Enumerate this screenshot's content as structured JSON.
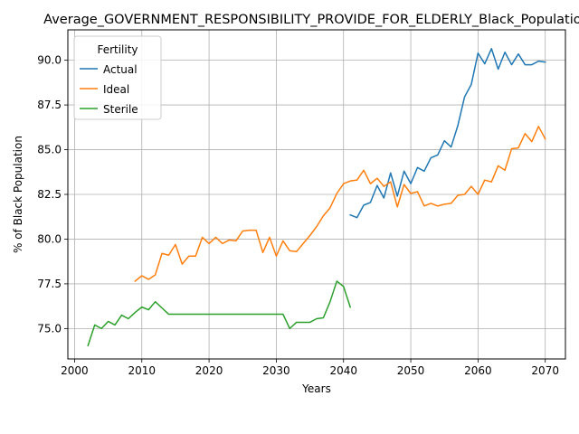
{
  "chart_data": {
    "type": "line",
    "title": "Average_GOVERNMENT_RESPONSIBILITY_PROVIDE_FOR_ELDERLY_Black_Population",
    "xlabel": "Years",
    "ylabel": "% of Black Population",
    "xlim": [
      1999,
      2073
    ],
    "ylim": [
      73.3,
      91.7
    ],
    "xticks": [
      2000,
      2010,
      2020,
      2030,
      2040,
      2050,
      2060,
      2070
    ],
    "yticks": [
      75.0,
      77.5,
      80.0,
      82.5,
      85.0,
      87.5,
      90.0
    ],
    "ytick_labels": [
      "75.0",
      "77.5",
      "80.0",
      "82.5",
      "85.0",
      "87.5",
      "90.0"
    ],
    "grid": true,
    "legend": {
      "title": "Fertility",
      "placement": "top-left"
    },
    "series": [
      {
        "name": "Actual",
        "color": "#1f77b4",
        "x": [
          2041,
          2042,
          2043,
          2044,
          2045,
          2046,
          2047,
          2048,
          2049,
          2050,
          2051,
          2052,
          2053,
          2054,
          2055,
          2056,
          2057,
          2058,
          2059,
          2060,
          2061,
          2062,
          2063,
          2064,
          2065,
          2066,
          2067,
          2068,
          2069,
          2070
        ],
        "y": [
          81.35,
          81.2,
          81.9,
          82.05,
          83.0,
          82.3,
          83.7,
          82.4,
          83.8,
          83.1,
          84.0,
          83.8,
          84.55,
          84.7,
          85.5,
          85.15,
          86.35,
          87.95,
          88.65,
          90.4,
          89.8,
          90.65,
          89.5,
          90.45,
          89.75,
          90.35,
          89.75,
          89.75,
          89.95,
          89.9
        ]
      },
      {
        "name": "Ideal",
        "color": "#ff7f0e",
        "x": [
          2009,
          2010,
          2011,
          2012,
          2013,
          2014,
          2015,
          2016,
          2017,
          2018,
          2019,
          2020,
          2021,
          2022,
          2023,
          2024,
          2025,
          2026,
          2027,
          2028,
          2029,
          2030,
          2031,
          2032,
          2033,
          2034,
          2035,
          2036,
          2037,
          2038,
          2039,
          2040,
          2041,
          2042,
          2043,
          2044,
          2045,
          2046,
          2047,
          2048,
          2049,
          2050,
          2051,
          2052,
          2053,
          2054,
          2055,
          2056,
          2057,
          2058,
          2059,
          2060,
          2061,
          2062,
          2063,
          2064,
          2065,
          2066,
          2067,
          2068,
          2069,
          2070
        ],
        "y": [
          77.65,
          77.95,
          77.75,
          78.0,
          79.2,
          79.1,
          79.7,
          78.6,
          79.05,
          79.05,
          80.1,
          79.75,
          80.1,
          79.75,
          79.95,
          79.9,
          80.45,
          80.5,
          80.5,
          79.25,
          80.1,
          79.05,
          79.9,
          79.35,
          79.3,
          79.75,
          80.2,
          80.7,
          81.3,
          81.75,
          82.55,
          83.1,
          83.25,
          83.3,
          83.85,
          83.1,
          83.4,
          82.95,
          83.2,
          81.8,
          83.05,
          82.55,
          82.65,
          81.85,
          82.0,
          81.85,
          81.95,
          82.0,
          82.45,
          82.5,
          82.95,
          82.5,
          83.3,
          83.2,
          84.1,
          83.85,
          85.05,
          85.1,
          85.9,
          85.45,
          86.3,
          85.6
        ]
      },
      {
        "name": "Sterile",
        "color": "#2ca02c",
        "x": [
          2002,
          2003,
          2004,
          2005,
          2006,
          2007,
          2008,
          2009,
          2010,
          2011,
          2012,
          2013,
          2014,
          2015,
          2016,
          2017,
          2018,
          2019,
          2020,
          2021,
          2022,
          2023,
          2024,
          2025,
          2026,
          2027,
          2028,
          2029,
          2030,
          2031,
          2032,
          2033,
          2034,
          2035,
          2036,
          2037,
          2038,
          2039,
          2040,
          2041
        ],
        "y": [
          74.05,
          75.2,
          75.0,
          75.4,
          75.2,
          75.75,
          75.55,
          75.9,
          76.2,
          76.05,
          76.5,
          76.15,
          75.8,
          75.8,
          75.8,
          75.8,
          75.8,
          75.8,
          75.8,
          75.8,
          75.8,
          75.8,
          75.8,
          75.8,
          75.8,
          75.8,
          75.8,
          75.8,
          75.8,
          75.8,
          75.0,
          75.35,
          75.35,
          75.35,
          75.55,
          75.6,
          76.5,
          77.65,
          77.35,
          76.2
        ]
      }
    ]
  }
}
